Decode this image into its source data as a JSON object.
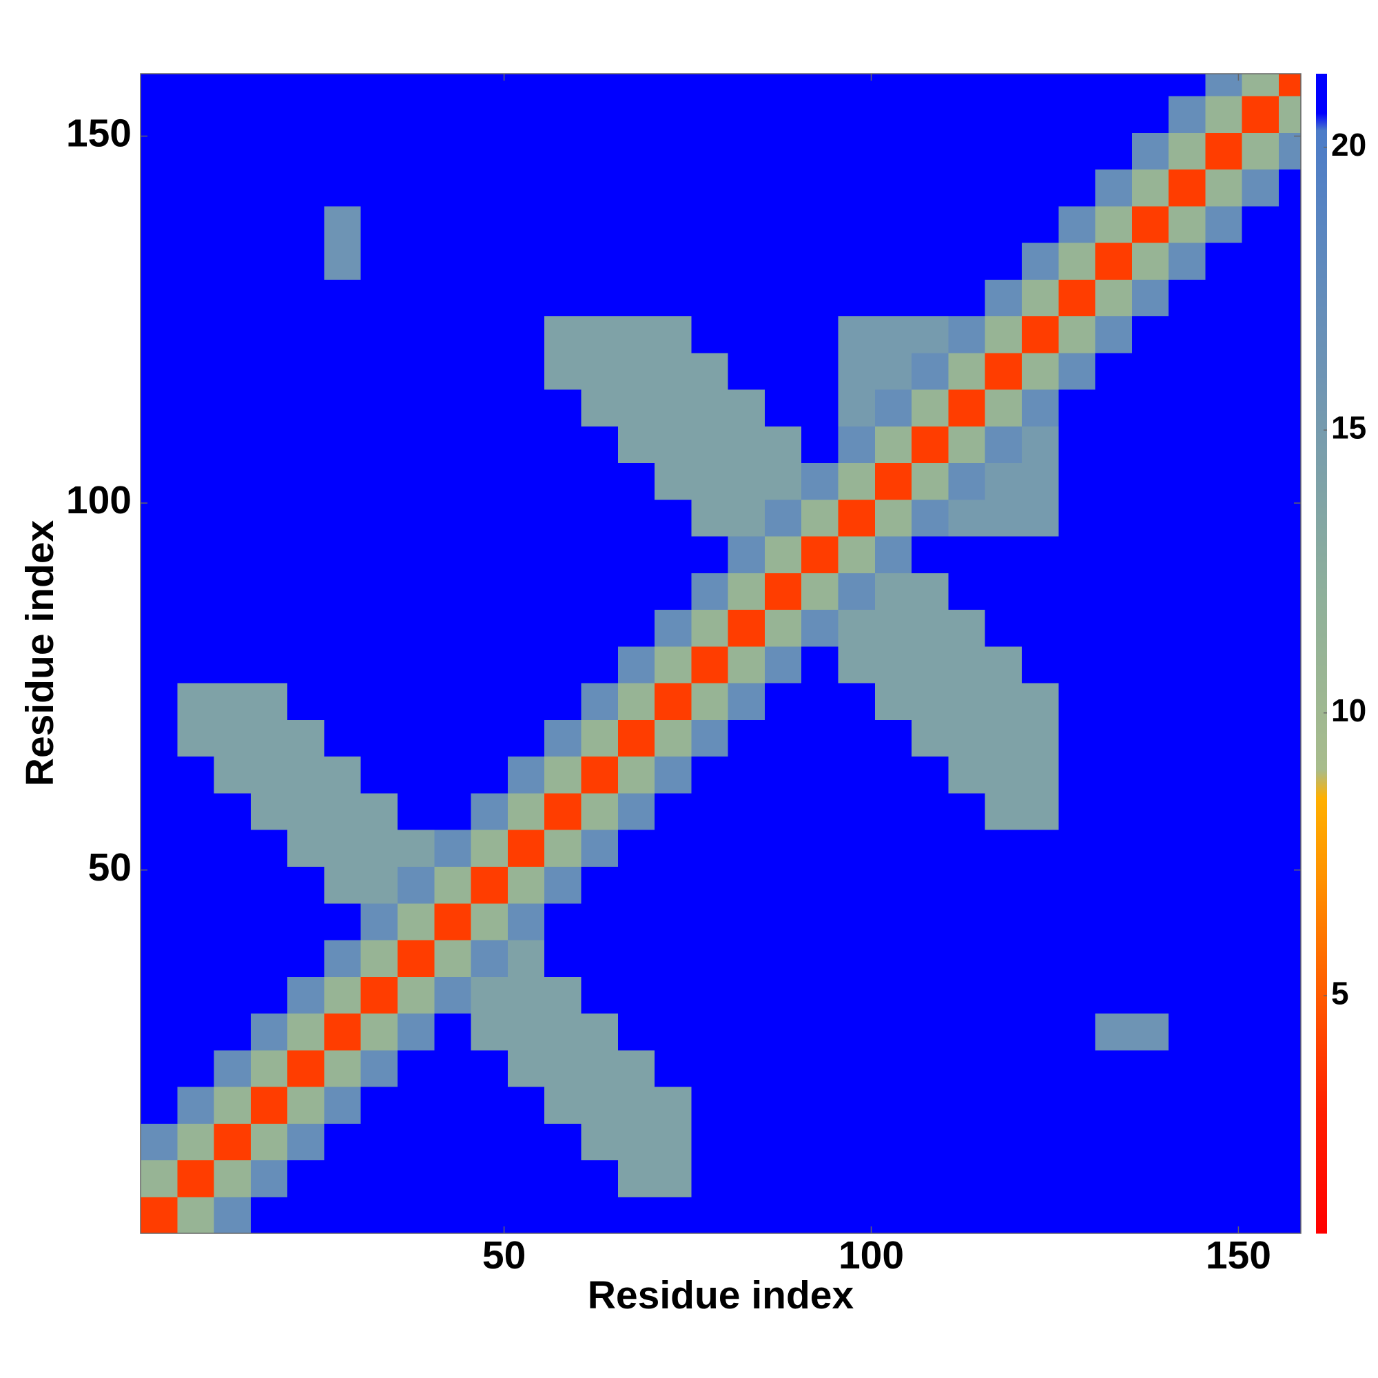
{
  "chart_data": {
    "type": "heatmap",
    "xlabel": "Residue index",
    "ylabel": "Residue index",
    "xlim": [
      0.5,
      158.5
    ],
    "ylim": [
      0.5,
      158.5
    ],
    "xticks": [
      50,
      100,
      150
    ],
    "yticks": [
      50,
      100,
      150
    ],
    "xbins": [
      0.5,
      5.5,
      10.5,
      15.5,
      20.5,
      25.5,
      30.5,
      35.5,
      40.5,
      45.5,
      50.5,
      55.5,
      60.5,
      65.5,
      70.5,
      75.5,
      80.5,
      85.5,
      90.5,
      95.5,
      100.5,
      105.5,
      110.5,
      115.5,
      120.5,
      125.5,
      130.5,
      135.5,
      140.5,
      145.5,
      150.5,
      155.5,
      158.5
    ],
    "ybins": [
      0.5,
      5.5,
      10.5,
      15.5,
      20.5,
      25.5,
      30.5,
      35.5,
      40.5,
      45.5,
      50.5,
      55.5,
      60.5,
      65.5,
      70.5,
      75.5,
      80.5,
      85.5,
      90.5,
      95.5,
      100.5,
      105.5,
      110.5,
      115.5,
      120.5,
      125.5,
      130.5,
      135.5,
      140.5,
      145.5,
      150.5,
      155.5,
      158.5
    ],
    "values": [
      [
        4,
        11,
        17,
        21,
        21,
        21,
        21,
        21,
        21,
        21,
        21,
        21,
        21,
        21,
        21,
        21,
        21,
        21,
        21,
        21,
        21,
        21,
        21,
        21,
        21,
        21,
        21,
        21,
        21,
        21,
        21,
        21
      ],
      [
        11,
        4,
        11,
        17,
        21,
        21,
        21,
        21,
        21,
        21,
        21,
        21,
        21,
        14,
        14,
        21,
        21,
        21,
        21,
        21,
        21,
        21,
        21,
        21,
        21,
        21,
        21,
        21,
        21,
        21,
        21,
        21
      ],
      [
        17,
        11,
        4,
        11,
        17,
        21,
        21,
        21,
        21,
        21,
        21,
        21,
        14,
        14,
        14,
        21,
        21,
        21,
        21,
        21,
        21,
        21,
        21,
        21,
        21,
        21,
        21,
        21,
        21,
        21,
        21,
        21
      ],
      [
        21,
        17,
        11,
        4,
        11,
        17,
        21,
        21,
        21,
        21,
        21,
        14,
        14,
        14,
        14,
        21,
        21,
        21,
        21,
        21,
        21,
        21,
        21,
        21,
        21,
        21,
        21,
        21,
        21,
        21,
        21,
        21
      ],
      [
        21,
        21,
        17,
        11,
        4,
        11,
        17,
        21,
        21,
        21,
        14,
        14,
        14,
        14,
        21,
        21,
        21,
        21,
        21,
        21,
        21,
        21,
        21,
        21,
        21,
        21,
        21,
        21,
        21,
        21,
        21,
        21
      ],
      [
        21,
        21,
        21,
        17,
        11,
        4,
        11,
        17,
        21,
        14,
        14,
        14,
        14,
        21,
        21,
        21,
        21,
        21,
        21,
        21,
        21,
        21,
        21,
        21,
        21,
        21,
        16,
        16,
        21,
        21,
        21,
        21
      ],
      [
        21,
        21,
        21,
        21,
        17,
        11,
        4,
        11,
        17,
        14,
        14,
        14,
        21,
        21,
        21,
        21,
        21,
        21,
        21,
        21,
        21,
        21,
        21,
        21,
        21,
        21,
        21,
        21,
        21,
        21,
        21,
        21
      ],
      [
        21,
        21,
        21,
        21,
        21,
        17,
        11,
        4,
        11,
        17,
        14,
        21,
        21,
        21,
        21,
        21,
        21,
        21,
        21,
        21,
        21,
        21,
        21,
        21,
        21,
        21,
        21,
        21,
        21,
        21,
        21,
        21
      ],
      [
        21,
        21,
        21,
        21,
        21,
        21,
        17,
        11,
        4,
        11,
        17,
        21,
        21,
        21,
        21,
        21,
        21,
        21,
        21,
        21,
        21,
        21,
        21,
        21,
        21,
        21,
        21,
        21,
        21,
        21,
        21,
        21
      ],
      [
        21,
        21,
        21,
        21,
        21,
        14,
        14,
        17,
        11,
        4,
        11,
        17,
        21,
        21,
        21,
        21,
        21,
        21,
        21,
        21,
        21,
        21,
        21,
        21,
        21,
        21,
        21,
        21,
        21,
        21,
        21,
        21
      ],
      [
        21,
        21,
        21,
        21,
        14,
        14,
        14,
        14,
        17,
        11,
        4,
        11,
        17,
        21,
        21,
        21,
        21,
        21,
        21,
        21,
        21,
        21,
        21,
        21,
        21,
        21,
        21,
        21,
        21,
        21,
        21,
        21
      ],
      [
        21,
        21,
        21,
        14,
        14,
        14,
        14,
        21,
        21,
        17,
        11,
        4,
        11,
        17,
        21,
        21,
        21,
        21,
        21,
        21,
        21,
        21,
        21,
        14,
        14,
        21,
        21,
        21,
        21,
        21,
        21,
        21
      ],
      [
        21,
        21,
        14,
        14,
        14,
        14,
        21,
        21,
        21,
        21,
        17,
        11,
        4,
        11,
        17,
        21,
        21,
        21,
        21,
        21,
        21,
        21,
        14,
        14,
        14,
        21,
        21,
        21,
        21,
        21,
        21,
        21
      ],
      [
        21,
        14,
        14,
        14,
        14,
        21,
        21,
        21,
        21,
        21,
        21,
        17,
        11,
        4,
        11,
        17,
        21,
        21,
        21,
        21,
        21,
        14,
        14,
        14,
        14,
        21,
        21,
        21,
        21,
        21,
        21,
        21
      ],
      [
        21,
        14,
        14,
        14,
        21,
        21,
        21,
        21,
        21,
        21,
        21,
        21,
        17,
        11,
        4,
        11,
        17,
        21,
        21,
        21,
        14,
        14,
        14,
        14,
        14,
        21,
        21,
        21,
        21,
        21,
        21,
        21
      ],
      [
        21,
        21,
        21,
        21,
        21,
        21,
        21,
        21,
        21,
        21,
        21,
        21,
        21,
        17,
        11,
        4,
        11,
        17,
        21,
        14,
        14,
        14,
        14,
        14,
        21,
        21,
        21,
        21,
        21,
        21,
        21,
        21
      ],
      [
        21,
        21,
        21,
        21,
        21,
        21,
        21,
        21,
        21,
        21,
        21,
        21,
        21,
        21,
        17,
        11,
        4,
        11,
        17,
        14,
        14,
        14,
        14,
        21,
        21,
        21,
        21,
        21,
        21,
        21,
        21,
        21
      ],
      [
        21,
        21,
        21,
        21,
        21,
        21,
        21,
        21,
        21,
        21,
        21,
        21,
        21,
        21,
        21,
        17,
        11,
        4,
        11,
        17,
        14,
        14,
        21,
        21,
        21,
        21,
        21,
        21,
        21,
        21,
        21,
        21
      ],
      [
        21,
        21,
        21,
        21,
        21,
        21,
        21,
        21,
        21,
        21,
        21,
        21,
        21,
        21,
        21,
        21,
        17,
        11,
        4,
        11,
        17,
        21,
        21,
        21,
        21,
        21,
        21,
        21,
        21,
        21,
        21,
        21
      ],
      [
        21,
        21,
        21,
        21,
        21,
        21,
        21,
        21,
        21,
        21,
        21,
        21,
        21,
        21,
        21,
        14,
        14,
        17,
        11,
        4,
        11,
        17,
        15,
        15,
        15,
        21,
        21,
        21,
        21,
        21,
        21,
        21
      ],
      [
        21,
        21,
        21,
        21,
        21,
        21,
        21,
        21,
        21,
        21,
        21,
        21,
        21,
        21,
        14,
        14,
        14,
        14,
        17,
        11,
        4,
        11,
        17,
        15,
        15,
        21,
        21,
        21,
        21,
        21,
        21,
        21
      ],
      [
        21,
        21,
        21,
        21,
        21,
        21,
        21,
        21,
        21,
        21,
        21,
        21,
        21,
        14,
        14,
        14,
        14,
        14,
        21,
        17,
        11,
        4,
        11,
        17,
        15,
        21,
        21,
        21,
        21,
        21,
        21,
        21
      ],
      [
        21,
        21,
        21,
        21,
        21,
        21,
        21,
        21,
        21,
        21,
        21,
        21,
        14,
        14,
        14,
        14,
        14,
        21,
        21,
        15,
        17,
        11,
        4,
        11,
        17,
        21,
        21,
        21,
        21,
        21,
        21,
        21
      ],
      [
        21,
        21,
        21,
        21,
        21,
        21,
        21,
        21,
        21,
        21,
        21,
        14,
        14,
        14,
        14,
        14,
        21,
        21,
        21,
        15,
        15,
        17,
        11,
        4,
        11,
        17,
        21,
        21,
        21,
        21,
        21,
        21
      ],
      [
        21,
        21,
        21,
        21,
        21,
        21,
        21,
        21,
        21,
        21,
        21,
        14,
        14,
        14,
        14,
        21,
        21,
        21,
        21,
        15,
        15,
        15,
        17,
        11,
        4,
        11,
        17,
        21,
        21,
        21,
        21,
        21
      ],
      [
        21,
        21,
        21,
        21,
        21,
        21,
        21,
        21,
        21,
        21,
        21,
        21,
        21,
        21,
        21,
        21,
        21,
        21,
        21,
        21,
        21,
        21,
        21,
        17,
        11,
        4,
        11,
        17,
        21,
        21,
        21,
        21
      ],
      [
        21,
        21,
        21,
        21,
        21,
        16,
        21,
        21,
        21,
        21,
        21,
        21,
        21,
        21,
        21,
        21,
        21,
        21,
        21,
        21,
        21,
        21,
        21,
        21,
        17,
        11,
        4,
        11,
        17,
        21,
        21,
        21
      ],
      [
        21,
        21,
        21,
        21,
        21,
        16,
        21,
        21,
        21,
        21,
        21,
        21,
        21,
        21,
        21,
        21,
        21,
        21,
        21,
        21,
        21,
        21,
        21,
        21,
        21,
        17,
        11,
        4,
        11,
        17,
        21,
        21
      ],
      [
        21,
        21,
        21,
        21,
        21,
        21,
        21,
        21,
        21,
        21,
        21,
        21,
        21,
        21,
        21,
        21,
        21,
        21,
        21,
        21,
        21,
        21,
        21,
        21,
        21,
        21,
        17,
        11,
        4,
        11,
        17,
        21
      ],
      [
        21,
        21,
        21,
        21,
        21,
        21,
        21,
        21,
        21,
        21,
        21,
        21,
        21,
        21,
        21,
        21,
        21,
        21,
        21,
        21,
        21,
        21,
        21,
        21,
        21,
        21,
        21,
        17,
        11,
        4,
        11,
        17
      ],
      [
        21,
        21,
        21,
        21,
        21,
        21,
        21,
        21,
        21,
        21,
        21,
        21,
        21,
        21,
        21,
        21,
        21,
        21,
        21,
        21,
        21,
        21,
        21,
        21,
        21,
        21,
        21,
        21,
        17,
        11,
        4,
        11
      ],
      [
        21,
        21,
        21,
        21,
        21,
        21,
        21,
        21,
        21,
        21,
        21,
        21,
        21,
        21,
        21,
        21,
        21,
        21,
        21,
        21,
        21,
        21,
        21,
        21,
        21,
        21,
        21,
        21,
        21,
        17,
        11,
        4
      ]
    ],
    "clim": [
      0.8,
      21.3
    ],
    "colorscale": [
      [
        0.8,
        "#ff0000"
      ],
      [
        3,
        "#ff2000"
      ],
      [
        5,
        "#ff5a00"
      ],
      [
        7,
        "#ff9000"
      ],
      [
        8.5,
        "#ffb000"
      ],
      [
        9,
        "#a8bc8c"
      ],
      [
        12,
        "#8fb09a"
      ],
      [
        16,
        "#6e94b4"
      ],
      [
        20.3,
        "#4c7cc8"
      ],
      [
        20.6,
        "#0000ff"
      ],
      [
        21.3,
        "#0000ff"
      ]
    ],
    "colorbar_ticks": [
      5,
      10,
      15,
      20
    ]
  }
}
